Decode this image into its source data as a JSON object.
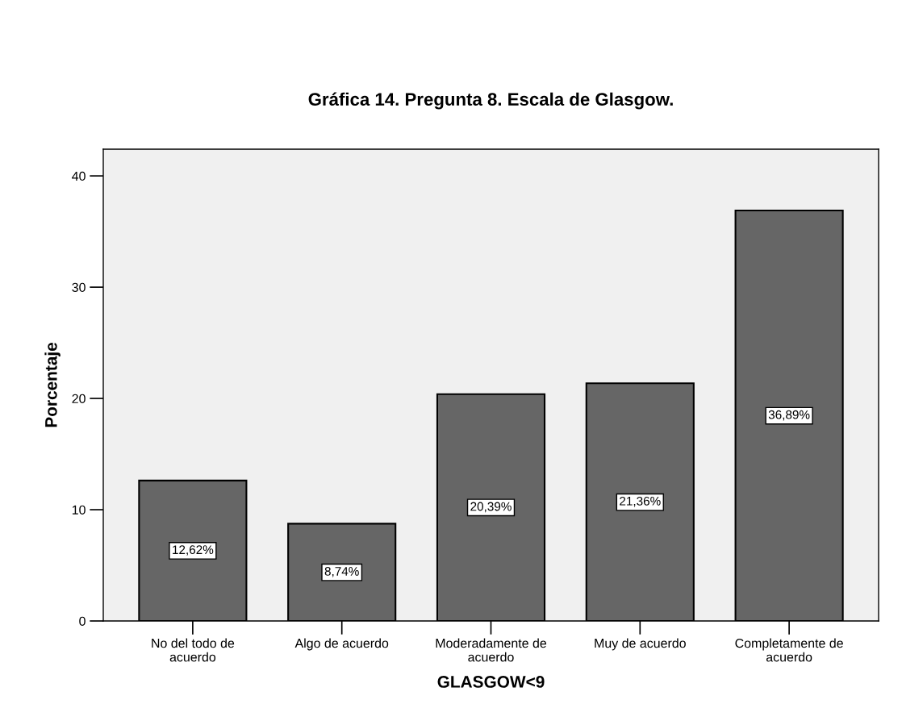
{
  "chart_data": {
    "type": "bar",
    "title": "Gráfica 14. Pregunta 8. Escala de Glasgow.",
    "xlabel": "GLASGOW<9",
    "ylabel": "Porcentaje",
    "categories": [
      "No del todo de\nacuerdo",
      "Algo de acuerdo",
      "Moderadamente de\nacuerdo",
      "Muy de acuerdo",
      "Completamente de\nacuerdo"
    ],
    "values": [
      12.62,
      8.74,
      20.39,
      21.36,
      36.89
    ],
    "value_labels": [
      "12,62%",
      "8,74%",
      "20,39%",
      "21,36%",
      "36,89%"
    ],
    "color": "#666666",
    "ylim": [
      0,
      42.4
    ],
    "yticks": [
      0,
      10,
      20,
      30,
      40
    ],
    "grid": false,
    "legend": false
  }
}
